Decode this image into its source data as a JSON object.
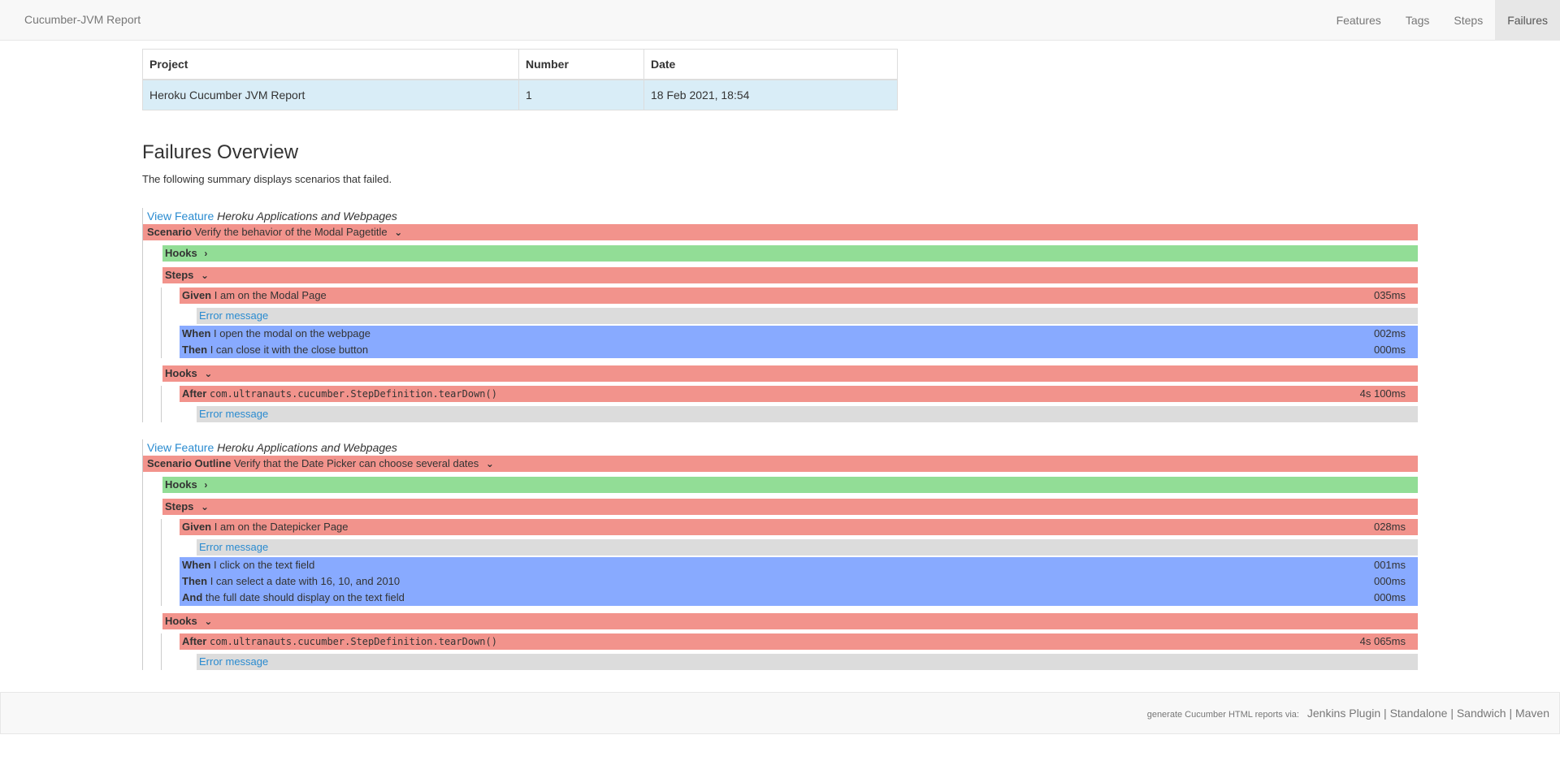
{
  "nav": {
    "brand": "Cucumber-JVM Report",
    "items": [
      "Features",
      "Tags",
      "Steps",
      "Failures"
    ]
  },
  "report_table": {
    "headers": [
      "Project",
      "Number",
      "Date"
    ],
    "row": [
      "Heroku Cucumber JVM Report",
      "1",
      "18 Feb 2021, 18:54"
    ]
  },
  "overview": {
    "title": "Failures Overview",
    "description": "The following summary displays scenarios that failed."
  },
  "failures": [
    {
      "view_feature": "View Feature",
      "feature_name": "Heroku Applications and Webpages",
      "scenario_keyword": "Scenario",
      "scenario_name": "Verify the behavior of the Modal Pagetitle",
      "hooks_before_label": "Hooks",
      "steps_label": "Steps",
      "failed_step": {
        "keyword": "Given",
        "text": "I am on the Modal Page",
        "duration": "035ms"
      },
      "error_message": "Error message",
      "other_steps": [
        {
          "keyword": "When",
          "text": "I open the modal on the webpage",
          "duration": "002ms"
        },
        {
          "keyword": "Then",
          "text": "I can close it with the close button",
          "duration": "000ms"
        }
      ],
      "hooks_after_label": "Hooks",
      "after_hook": {
        "keyword": "After",
        "text": "com.ultranauts.cucumber.StepDefinition.tearDown()",
        "duration": "4s 100ms"
      },
      "after_error": "Error message"
    },
    {
      "view_feature": "View Feature",
      "feature_name": "Heroku Applications and Webpages",
      "scenario_keyword": "Scenario Outline",
      "scenario_name": "Verify that the Date Picker can choose several dates",
      "hooks_before_label": "Hooks",
      "steps_label": "Steps",
      "failed_step": {
        "keyword": "Given",
        "text": "I am on the Datepicker Page",
        "duration": "028ms"
      },
      "error_message": "Error message",
      "other_steps": [
        {
          "keyword": "When",
          "text": "I click on the text field",
          "duration": "001ms"
        },
        {
          "keyword": "Then",
          "text": "I can select a date with 16, 10, and 2010",
          "duration": "000ms"
        },
        {
          "keyword": "And",
          "text": "the full date should display on the text field",
          "duration": "000ms"
        }
      ],
      "hooks_after_label": "Hooks",
      "after_hook": {
        "keyword": "After",
        "text": "com.ultranauts.cucumber.StepDefinition.tearDown()",
        "duration": "4s 065ms"
      },
      "after_error": "Error message"
    }
  ],
  "footer": {
    "prefix": "generate Cucumber HTML reports via:",
    "links": [
      "Jenkins Plugin",
      "Standalone",
      "Sandwich",
      "Maven"
    ],
    "separator": "|"
  },
  "colors": {
    "failed": "#f2938c",
    "passed": "#92dd96",
    "skipped": "#88aaff",
    "error_bg": "#dcdcdc",
    "link": "#2a8bd0"
  },
  "icons": {
    "collapsed": "chevron-right-icon",
    "expanded": "chevron-down-icon"
  }
}
